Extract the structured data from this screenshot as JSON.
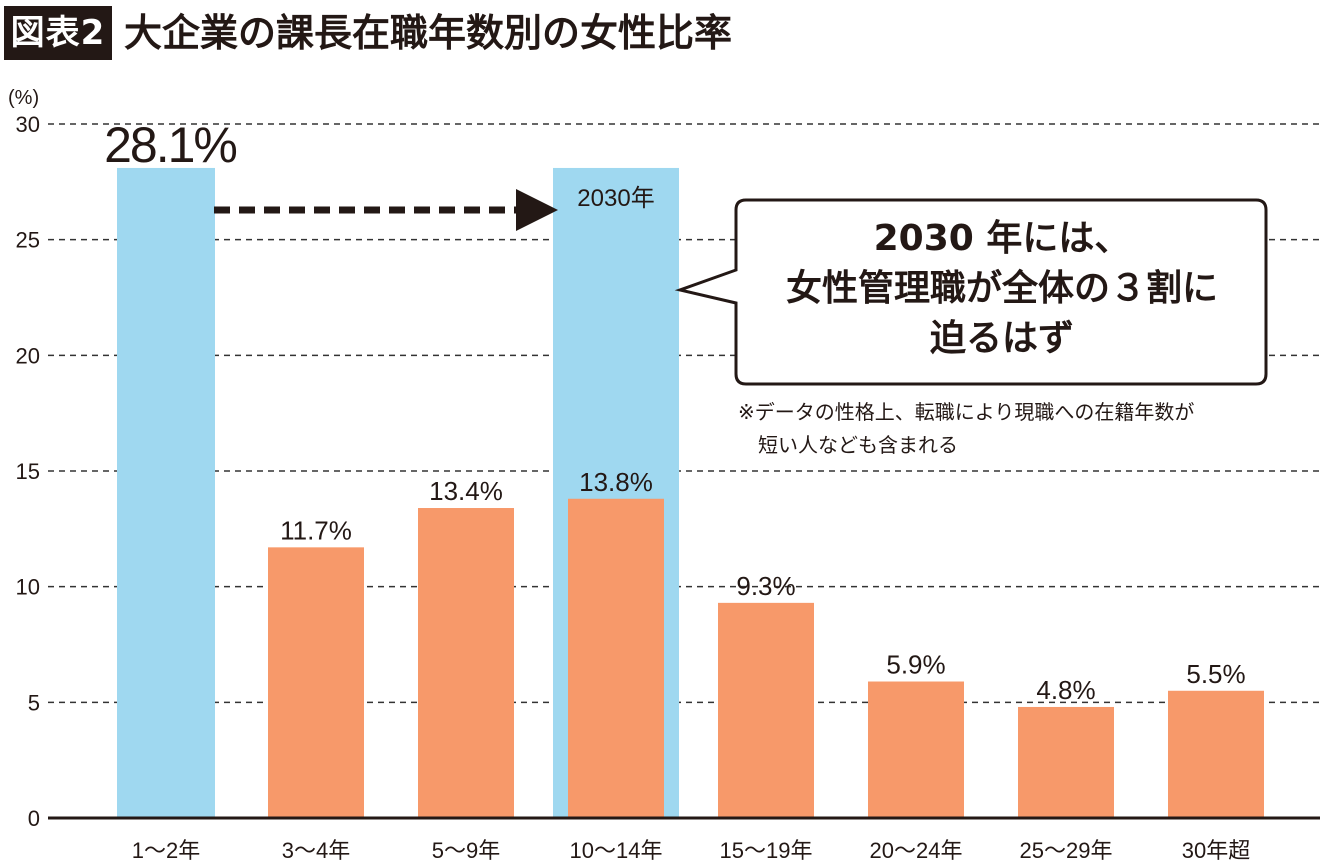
{
  "figure": {
    "label": "図表2",
    "title": "大企業の課長在職年数別の女性比率"
  },
  "chart_data": {
    "type": "bar",
    "unit_label": "(%)",
    "ylim": [
      0,
      30
    ],
    "yticks": [
      0,
      5,
      10,
      15,
      20,
      25,
      30
    ],
    "grid": true,
    "categories": [
      "1～2年",
      "3～4年",
      "5～9年",
      "10～14年",
      "15～19年",
      "20～24年",
      "25～29年",
      "30年超"
    ],
    "series": [
      {
        "values": [
          28.1,
          11.7,
          13.4,
          13.8,
          9.3,
          5.9,
          4.8,
          5.5
        ],
        "labels": [
          "28.1%",
          "11.7%",
          "13.4%",
          "13.8%",
          "9.3%",
          "5.9%",
          "4.8%",
          "5.5%"
        ]
      }
    ],
    "highlight": {
      "category_index": 0,
      "value": 28.1
    },
    "projection": {
      "category_index": 3,
      "value": 28.1,
      "label": "2030年"
    },
    "colors": {
      "bar": "#f7996a",
      "highlight": "#9fd8f0",
      "grid": "#333333",
      "axis": "#231815"
    }
  },
  "callout": {
    "lines": [
      "2030 年には、",
      "女性管理職が全体の３割に",
      "迫るはず"
    ]
  },
  "note": {
    "lines": [
      "※データの性格上、転職により現職への在籍年数が",
      "短い人なども含まれる"
    ]
  }
}
